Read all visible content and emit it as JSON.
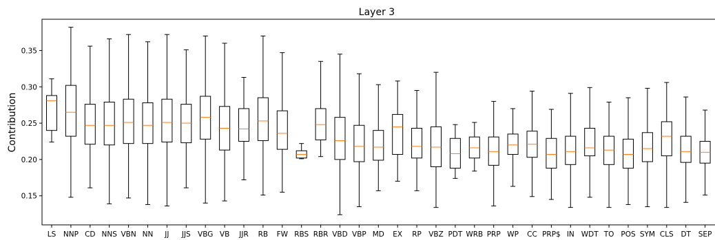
{
  "chart_data": {
    "type": "boxplot",
    "title": "Layer 3",
    "xlabel": "",
    "ylabel": "Contribution",
    "ylim": [
      0.11,
      0.393
    ],
    "yticks": [
      0.15,
      0.2,
      0.25,
      0.3,
      0.35
    ],
    "ytick_labels": [
      "0.15",
      "0.20",
      "0.25",
      "0.30",
      "0.35"
    ],
    "grid": false,
    "colors": {
      "box": "#000000",
      "median": "#ff7f0e",
      "whisker": "#000000"
    },
    "categories": [
      "LS",
      "NNP",
      "CD",
      "NNS",
      "VBN",
      "NN",
      "JJ",
      "JJS",
      "VBG",
      "VB",
      "JJR",
      "RB",
      "FW",
      "RBS",
      "RBR",
      "VBD",
      "VBP",
      "MD",
      "EX",
      "RP",
      "VBZ",
      "PDT",
      "WRB",
      "PRP",
      "WP",
      "CC",
      "PRP$",
      "IN",
      "WDT",
      "TO",
      "POS",
      "SYM",
      "CLS",
      "DT",
      "SEP"
    ],
    "boxes": [
      {
        "whislo": 0.224,
        "q1": 0.24,
        "med": 0.281,
        "q3": 0.288,
        "whishi": 0.311
      },
      {
        "whislo": 0.148,
        "q1": 0.232,
        "med": 0.265,
        "q3": 0.302,
        "whishi": 0.382
      },
      {
        "whislo": 0.161,
        "q1": 0.221,
        "med": 0.247,
        "q3": 0.276,
        "whishi": 0.356
      },
      {
        "whislo": 0.139,
        "q1": 0.22,
        "med": 0.247,
        "q3": 0.279,
        "whishi": 0.366
      },
      {
        "whislo": 0.147,
        "q1": 0.222,
        "med": 0.251,
        "q3": 0.283,
        "whishi": 0.372
      },
      {
        "whislo": 0.138,
        "q1": 0.222,
        "med": 0.247,
        "q3": 0.278,
        "whishi": 0.362
      },
      {
        "whislo": 0.136,
        "q1": 0.224,
        "med": 0.251,
        "q3": 0.283,
        "whishi": 0.372
      },
      {
        "whislo": 0.161,
        "q1": 0.223,
        "med": 0.25,
        "q3": 0.276,
        "whishi": 0.351
      },
      {
        "whislo": 0.14,
        "q1": 0.228,
        "med": 0.258,
        "q3": 0.287,
        "whishi": 0.37
      },
      {
        "whislo": 0.143,
        "q1": 0.213,
        "med": 0.243,
        "q3": 0.273,
        "whishi": 0.36
      },
      {
        "whislo": 0.172,
        "q1": 0.225,
        "med": 0.242,
        "q3": 0.27,
        "whishi": 0.313
      },
      {
        "whislo": 0.151,
        "q1": 0.226,
        "med": 0.253,
        "q3": 0.285,
        "whishi": 0.37
      },
      {
        "whislo": 0.155,
        "q1": 0.214,
        "med": 0.236,
        "q3": 0.267,
        "whishi": 0.347
      },
      {
        "whislo": 0.201,
        "q1": 0.202,
        "med": 0.207,
        "q3": 0.212,
        "whishi": 0.222
      },
      {
        "whislo": 0.204,
        "q1": 0.227,
        "med": 0.248,
        "q3": 0.27,
        "whishi": 0.335
      },
      {
        "whislo": 0.124,
        "q1": 0.2,
        "med": 0.226,
        "q3": 0.258,
        "whishi": 0.345
      },
      {
        "whislo": 0.135,
        "q1": 0.197,
        "med": 0.218,
        "q3": 0.247,
        "whishi": 0.318
      },
      {
        "whislo": 0.157,
        "q1": 0.199,
        "med": 0.217,
        "q3": 0.24,
        "whishi": 0.303
      },
      {
        "whislo": 0.17,
        "q1": 0.207,
        "med": 0.245,
        "q3": 0.262,
        "whishi": 0.308
      },
      {
        "whislo": 0.157,
        "q1": 0.202,
        "med": 0.218,
        "q3": 0.243,
        "whishi": 0.295
      },
      {
        "whislo": 0.134,
        "q1": 0.19,
        "med": 0.217,
        "q3": 0.245,
        "whishi": 0.32
      },
      {
        "whislo": 0.174,
        "q1": 0.188,
        "med": 0.208,
        "q3": 0.229,
        "whishi": 0.248
      },
      {
        "whislo": 0.184,
        "q1": 0.202,
        "med": 0.216,
        "q3": 0.231,
        "whishi": 0.251
      },
      {
        "whislo": 0.136,
        "q1": 0.192,
        "med": 0.211,
        "q3": 0.231,
        "whishi": 0.28
      },
      {
        "whislo": 0.163,
        "q1": 0.207,
        "med": 0.22,
        "q3": 0.235,
        "whishi": 0.27
      },
      {
        "whislo": 0.149,
        "q1": 0.203,
        "med": 0.221,
        "q3": 0.239,
        "whishi": 0.294
      },
      {
        "whislo": 0.145,
        "q1": 0.188,
        "med": 0.207,
        "q3": 0.229,
        "whishi": 0.269
      },
      {
        "whislo": 0.134,
        "q1": 0.193,
        "med": 0.211,
        "q3": 0.232,
        "whishi": 0.291
      },
      {
        "whislo": 0.148,
        "q1": 0.205,
        "med": 0.216,
        "q3": 0.243,
        "whishi": 0.299
      },
      {
        "whislo": 0.134,
        "q1": 0.193,
        "med": 0.213,
        "q3": 0.232,
        "whishi": 0.279
      },
      {
        "whislo": 0.138,
        "q1": 0.188,
        "med": 0.207,
        "q3": 0.228,
        "whishi": 0.285
      },
      {
        "whislo": 0.135,
        "q1": 0.197,
        "med": 0.215,
        "q3": 0.237,
        "whishi": 0.298
      },
      {
        "whislo": 0.134,
        "q1": 0.205,
        "med": 0.232,
        "q3": 0.252,
        "whishi": 0.306
      },
      {
        "whislo": 0.141,
        "q1": 0.196,
        "med": 0.211,
        "q3": 0.232,
        "whishi": 0.286
      },
      {
        "whislo": 0.151,
        "q1": 0.195,
        "med": 0.21,
        "q3": 0.225,
        "whishi": 0.268
      }
    ]
  }
}
